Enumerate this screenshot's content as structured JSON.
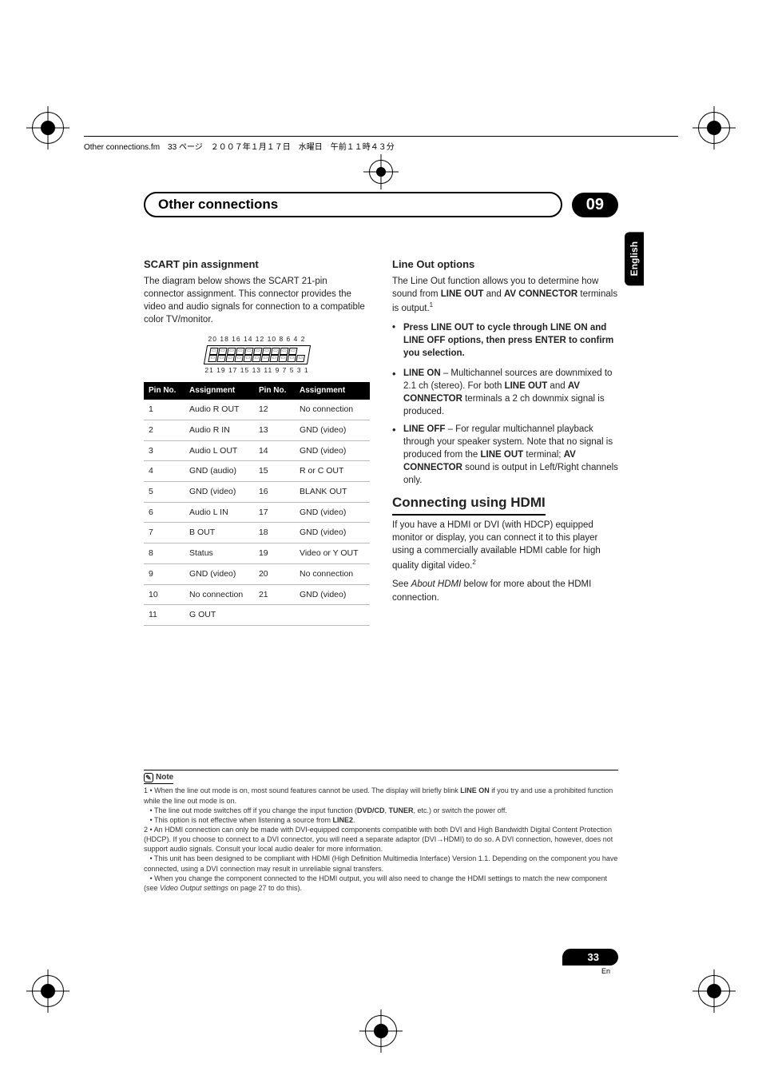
{
  "header_line": "Other connections.fm　33 ページ　２００７年１月１７日　水曜日　午前１１時４３分",
  "chapter_title": "Other connections",
  "chapter_number": "09",
  "side_tab": "English",
  "left": {
    "scart_heading": "SCART pin assignment",
    "scart_intro": "The diagram below shows the SCART 21-pin connector assignment. This connector provides the video and audio signals for connection to a compatible color TV/monitor.",
    "top_nums": "20 18 16 14 12 10 8 6 4 2",
    "bot_nums": "21 19 17 15 13 11 9 7 5 3 1",
    "th_pin": "Pin No.",
    "th_assign": "Assignment",
    "rows": [
      {
        "n": "1",
        "a": "Audio R OUT",
        "n2": "12",
        "a2": "No connection"
      },
      {
        "n": "2",
        "a": "Audio R IN",
        "n2": "13",
        "a2": "GND (video)"
      },
      {
        "n": "3",
        "a": "Audio L OUT",
        "n2": "14",
        "a2": "GND (video)"
      },
      {
        "n": "4",
        "a": "GND (audio)",
        "n2": "15",
        "a2": "R or C OUT"
      },
      {
        "n": "5",
        "a": "GND (video)",
        "n2": "16",
        "a2": "BLANK OUT"
      },
      {
        "n": "6",
        "a": "Audio L IN",
        "n2": "17",
        "a2": "GND (video)"
      },
      {
        "n": "7",
        "a": "B OUT",
        "n2": "18",
        "a2": "GND (video)"
      },
      {
        "n": "8",
        "a": "Status",
        "n2": "19",
        "a2": "Video or Y OUT"
      },
      {
        "n": "9",
        "a": "GND (video)",
        "n2": "20",
        "a2": "No connection"
      },
      {
        "n": "10",
        "a": "No connection",
        "n2": "21",
        "a2": "GND (video)"
      },
      {
        "n": "11",
        "a": "G OUT",
        "n2": "",
        "a2": ""
      }
    ]
  },
  "right": {
    "lineout_heading": "Line Out options",
    "lineout_p1_a": "The Line Out function allows you to determine how sound from ",
    "lineout_p1_b": "LINE OUT",
    "lineout_p1_c": " and ",
    "lineout_p1_d": "AV CONNECTOR",
    "lineout_p1_e": " terminals is output.",
    "instr": "Press LINE OUT to cycle through LINE ON and LINE OFF options, then press ENTER to confirm you selection.",
    "li1_a": "LINE ON",
    "li1_b": " – Multichannel sources are downmixed to 2.1 ch (stereo). For both ",
    "li1_c": "LINE OUT",
    "li1_d": " and ",
    "li1_e": "AV CONNECTOR",
    "li1_f": " terminals a 2 ch downmix signal is produced.",
    "li2_a": "LINE OFF",
    "li2_b": " – For regular multichannel playback through your speaker system. Note that no signal is produced from the ",
    "li2_c": "LINE OUT",
    "li2_d": " terminal; ",
    "li2_e": "AV CONNECTOR",
    "li2_f": " sound is output in Left/Right channels only.",
    "hdmi_heading": "Connecting using HDMI",
    "hdmi_p1": "If you have a HDMI or DVI (with HDCP) equipped monitor or display, you can connect it to this player using a commercially available HDMI cable for high quality digital video.",
    "hdmi_p2_a": "See ",
    "hdmi_p2_b": "About HDMI",
    "hdmi_p2_c": " below for more about the HDMI connection."
  },
  "note": {
    "label": "Note",
    "n1a": "1 • When the line out mode is on, most sound features cannot be used. The display will briefly blink ",
    "n1b": "LINE ON",
    "n1c": " if you try and use a prohibited function while the line out mode is on.",
    "n1d": "• The line out mode switches off if you change the input function (",
    "n1e": "DVD/CD",
    "n1f": ", ",
    "n1g": "TUNER",
    "n1h": ", etc.) or switch the power off.",
    "n1i": "• This option is not effective when listening a source from ",
    "n1j": "LINE2",
    "n1k": ".",
    "n2a": "2 • An HDMI connection can only be made with DVI-equipped components compatible with both DVI and High Bandwidth Digital Content Protection (HDCP). If you choose to connect to a DVI connector, you will need a separate adaptor (DVI→HDMI) to do so. A DVI connection, however, does not support audio signals. Consult your local audio dealer for more information.",
    "n2b": "• This unit has been designed to be compliant with HDMI (High Definition Multimedia Interface) Version 1.1. Depending on the component you have connected, using a DVI connection may result in unreliable signal transfers.",
    "n2c": "• When you change the component connected to the HDMI output, you will also need to change the HDMI settings to match the new component (see ",
    "n2d": "Video Output settings",
    "n2e": " on page 27 to do this)."
  },
  "page_number": "33",
  "page_lang": "En"
}
